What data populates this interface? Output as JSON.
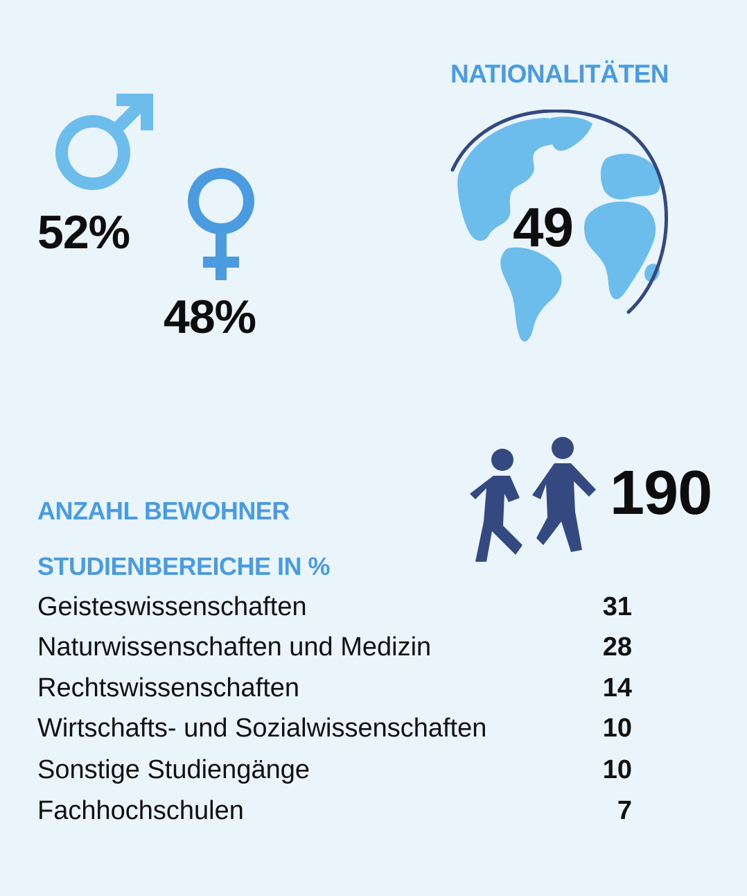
{
  "gender": {
    "male_percent": "52%",
    "female_percent": "48%",
    "male_icon": "male-symbol-icon",
    "female_icon": "female-symbol-icon"
  },
  "nationalities": {
    "heading": "NATIONALITÄTEN",
    "count": "49",
    "icon": "globe-icon"
  },
  "residents": {
    "heading": "ANZAHL BEWOHNER",
    "count": "190",
    "icon": "walking-people-icon"
  },
  "study_fields": {
    "heading": "STUDIENBEREICHE IN %",
    "rows": [
      {
        "label": "Geisteswissenschaften",
        "value": "31"
      },
      {
        "label": "Naturwissenschaften und Medizin",
        "value": "28"
      },
      {
        "label": "Rechtswissenschaften",
        "value": "14"
      },
      {
        "label": "Wirtschafts- und Sozialwissenschaften",
        "value": "10"
      },
      {
        "label": "Sonstige Studiengänge",
        "value": "10"
      },
      {
        "label": "Fachhochschulen",
        "value": "7"
      }
    ]
  },
  "colors": {
    "background": "#e9f4fb",
    "accent_light_blue": "#6cbcec",
    "accent_blue": "#4a9be0",
    "dark_blue": "#34497f",
    "text": "#111111"
  }
}
